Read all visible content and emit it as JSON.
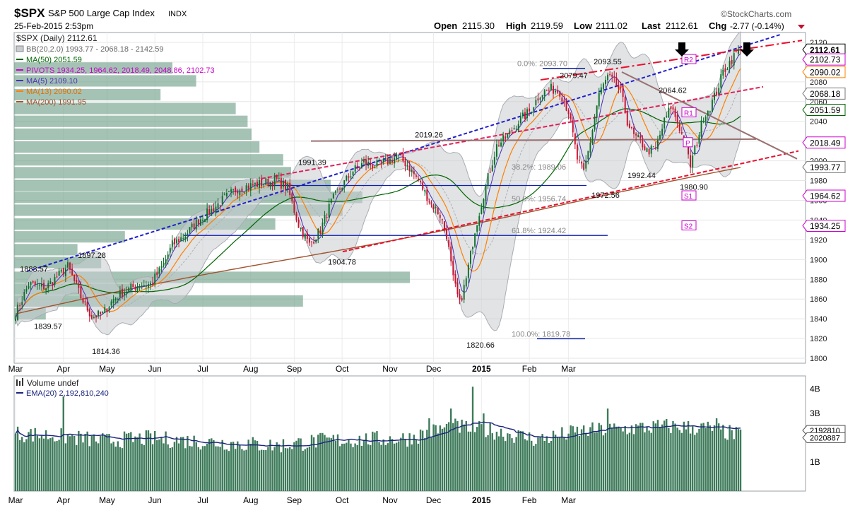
{
  "header": {
    "symbol": "$SPX",
    "name": "S&P 500 Large Cap Index",
    "exchange": "INDX",
    "datetime": "25-Feb-2015 2:53pm",
    "watermark": "©StockCharts.com",
    "open_label": "Open",
    "open_value": "2115.30",
    "high_label": "High",
    "high_value": "2119.59",
    "low_label": "Low",
    "low_value": "2111.02",
    "last_label": "Last",
    "last_value": "2112.61",
    "chg_label": "Chg",
    "chg_value": "-2.77 (-0.14%)"
  },
  "legend": {
    "series": "$SPX (Daily) 2112.61",
    "bb": "BB(20,2.0) 1993.77 - 2068.18 - 2142.59",
    "ma50": "MA(50) 2051.59",
    "pivots": "PIVOTS 1934.25, 1964.62, 2018.49, 2048.86, 2102.73",
    "ma5": "MA(5) 2109.10",
    "ma13": "MA(13) 2090.02",
    "ma200": "MA(200) 1991.95"
  },
  "volume_legend": {
    "title": "Volume undef",
    "ema": "EMA(20) 2,192,810,240",
    "last_badge": "2020887",
    "ema_badge": "2192810"
  },
  "colors": {
    "up": "#0b6e2a",
    "down": "#c8102e",
    "ma50": "#006400",
    "ma5": "#4b30b8",
    "ma13": "#ff7f00",
    "ma200": "#a0522d",
    "pivots": "#cc00cc",
    "bb": "#a9adb3",
    "volume": "#3d7a5a",
    "volume_profile": "#6e9e88",
    "ema_vol": "#1a237e",
    "trend_blue": "#1f1fcc",
    "trend_red": "#e8102e",
    "trend_pink": "#e0205a",
    "trend_brown": "#9a7070",
    "fib": "#0a1fa0"
  },
  "chart_data": {
    "type": "candlestick",
    "title": "$SPX S&P 500 Large Cap Index INDX",
    "period": "Daily",
    "x_months": [
      "Mar",
      "Apr",
      "May",
      "Jun",
      "Jul",
      "Aug",
      "Sep",
      "Oct",
      "Nov",
      "Dec",
      "2015",
      "Feb",
      "Mar"
    ],
    "ylim": [
      1795,
      2130
    ],
    "yticks": [
      1800,
      1820,
      1840,
      1860,
      1880,
      1900,
      1920,
      1940,
      1960,
      1980,
      2000,
      2020,
      2040,
      2060,
      2080,
      2100,
      2120
    ],
    "price_anchors": [
      [
        0,
        1845
      ],
      [
        6,
        1875
      ],
      [
        14,
        1872
      ],
      [
        24,
        1893
      ],
      [
        30,
        1862
      ],
      [
        35,
        1842
      ],
      [
        40,
        1845
      ],
      [
        45,
        1860
      ],
      [
        50,
        1868
      ],
      [
        57,
        1875
      ],
      [
        62,
        1875
      ],
      [
        68,
        1895
      ],
      [
        72,
        1915
      ],
      [
        78,
        1925
      ],
      [
        84,
        1940
      ],
      [
        90,
        1950
      ],
      [
        96,
        1962
      ],
      [
        102,
        1972
      ],
      [
        108,
        1975
      ],
      [
        115,
        1978
      ],
      [
        120,
        1980
      ],
      [
        125,
        1972
      ],
      [
        130,
        1935
      ],
      [
        135,
        1915
      ],
      [
        140,
        1930
      ],
      [
        145,
        1958
      ],
      [
        150,
        1975
      ],
      [
        155,
        1990
      ],
      [
        160,
        1998
      ],
      [
        165,
        1995
      ],
      [
        170,
        1998
      ],
      [
        175,
        2005
      ],
      [
        180,
        1996
      ],
      [
        185,
        1980
      ],
      [
        190,
        1960
      ],
      [
        195,
        1945
      ],
      [
        198,
        1925
      ],
      [
        201,
        1880
      ],
      [
        204,
        1855
      ],
      [
        207,
        1880
      ],
      [
        211,
        1930
      ],
      [
        216,
        1975
      ],
      [
        221,
        2015
      ],
      [
        226,
        2025
      ],
      [
        231,
        2040
      ],
      [
        236,
        2050
      ],
      [
        241,
        2068
      ],
      [
        246,
        2073
      ],
      [
        250,
        2070
      ],
      [
        254,
        2050
      ],
      [
        258,
        2002
      ],
      [
        261,
        1988
      ],
      [
        264,
        2020
      ],
      [
        268,
        2068
      ],
      [
        272,
        2085
      ],
      [
        275,
        2080
      ],
      [
        278,
        2070
      ],
      [
        281,
        2040
      ],
      [
        284,
        2025
      ],
      [
        287,
        2020
      ],
      [
        290,
        2010
      ],
      [
        294,
        2012
      ],
      [
        298,
        2040
      ],
      [
        301,
        2055
      ],
      [
        304,
        2040
      ],
      [
        307,
        2020
      ],
      [
        310,
        1995
      ],
      [
        313,
        2020
      ],
      [
        316,
        2045
      ],
      [
        319,
        2055
      ],
      [
        322,
        2070
      ],
      [
        325,
        2090
      ],
      [
        328,
        2100
      ],
      [
        331,
        2109
      ],
      [
        333,
        2112.61
      ]
    ],
    "annotations": [
      {
        "text": "1883.57",
        "value": 1883.57
      },
      {
        "text": "1897.28",
        "value": 1897.28
      },
      {
        "text": "1839.57",
        "value": 1839.57
      },
      {
        "text": "1814.36",
        "value": 1814.36
      },
      {
        "text": "1991.39",
        "value": 1991.39
      },
      {
        "text": "1904.78",
        "value": 1904.78
      },
      {
        "text": "2019.26",
        "value": 2019.26
      },
      {
        "text": "1820.66",
        "value": 1820.66
      },
      {
        "text": "2079.47",
        "value": 2079.47
      },
      {
        "text": "2093.55",
        "value": 2093.55
      },
      {
        "text": "1972.56",
        "value": 1972.56
      },
      {
        "text": "2064.62",
        "value": 2064.62
      },
      {
        "text": "1992.44",
        "value": 1992.44
      },
      {
        "text": "1980.90",
        "value": 1980.9
      }
    ],
    "fib_levels": [
      {
        "text": "0.0%: 2093.70",
        "value": 2093.7
      },
      {
        "text": "38.2%: 1989.06",
        "value": 1989.06
      },
      {
        "text": "50.0%: 1956.74",
        "value": 1956.74
      },
      {
        "text": "61.8%: 1924.42",
        "value": 1924.42
      },
      {
        "text": "100.0%: 1819.78",
        "value": 1819.78
      }
    ],
    "pivots": [
      {
        "label": "R2",
        "value": 2102.73
      },
      {
        "label": "R1",
        "value": 2048.86
      },
      {
        "label": "P",
        "value": 2018.49
      },
      {
        "label": "S1",
        "value": 1964.62
      },
      {
        "label": "S2",
        "value": 1934.25
      }
    ],
    "right_badges": [
      {
        "text": "2112.61",
        "value": 2112.61,
        "kind": "last"
      },
      {
        "text": "2102.73",
        "value": 2102.73,
        "kind": "pivot"
      },
      {
        "text": "2090.02",
        "value": 2090.02,
        "kind": "ma13"
      },
      {
        "text": "2068.18",
        "value": 2068.18,
        "kind": "bb"
      },
      {
        "text": "2051.59",
        "value": 2051.59,
        "kind": "ma50"
      },
      {
        "text": "2018.49",
        "value": 2018.49,
        "kind": "pivot"
      },
      {
        "text": "1993.77",
        "value": 1993.77,
        "kind": "bb"
      },
      {
        "text": "1964.62",
        "value": 1964.62,
        "kind": "pivot"
      },
      {
        "text": "1934.25",
        "value": 1934.25,
        "kind": "pivot"
      }
    ],
    "volume_profile": [
      {
        "price": 1845,
        "size": 0.08
      },
      {
        "price": 1858,
        "size": 0.73
      },
      {
        "price": 1870,
        "size": 0.3
      },
      {
        "price": 1882,
        "size": 1.0
      },
      {
        "price": 1897,
        "size": 0.22
      },
      {
        "price": 1910,
        "size": 0.16
      },
      {
        "price": 1923,
        "size": 0.28
      },
      {
        "price": 1936,
        "size": 0.66
      },
      {
        "price": 1950,
        "size": 0.83
      },
      {
        "price": 1963,
        "size": 0.88
      },
      {
        "price": 1975,
        "size": 0.8
      },
      {
        "price": 1988,
        "size": 0.7
      },
      {
        "price": 2001,
        "size": 0.68
      },
      {
        "price": 2014,
        "size": 0.62
      },
      {
        "price": 2027,
        "size": 0.6
      },
      {
        "price": 2040,
        "size": 0.59
      },
      {
        "price": 2053,
        "size": 0.56
      },
      {
        "price": 2067,
        "size": 0.37
      },
      {
        "price": 2081,
        "size": 0.46
      },
      {
        "price": 2094,
        "size": 0.4
      }
    ],
    "volume_axis": {
      "labels": [
        "4B",
        "3B",
        "1B"
      ],
      "values": [
        4.2,
        3.2,
        1.2
      ],
      "ylim": [
        0,
        4.6
      ]
    },
    "volume_anchors": [
      [
        0,
        2.3
      ],
      [
        20,
        2.2
      ],
      [
        40,
        2.0
      ],
      [
        60,
        2.1
      ],
      [
        80,
        2.0
      ],
      [
        100,
        1.9
      ],
      [
        120,
        1.8
      ],
      [
        140,
        2.0
      ],
      [
        160,
        2.05
      ],
      [
        180,
        2.1
      ],
      [
        200,
        2.6
      ],
      [
        220,
        2.4
      ],
      [
        240,
        2.05
      ],
      [
        260,
        2.4
      ],
      [
        280,
        2.5
      ],
      [
        300,
        2.6
      ],
      [
        320,
        2.5
      ],
      [
        333,
        2.2
      ]
    ]
  }
}
